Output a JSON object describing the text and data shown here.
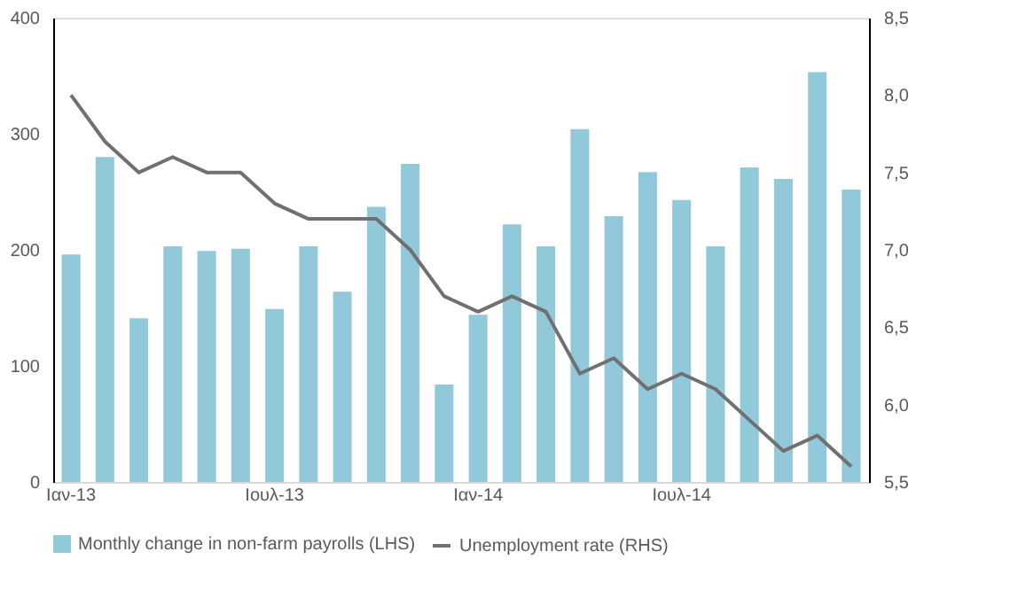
{
  "chart_data": {
    "type": "bar",
    "categories": [
      "Ιαν-13",
      null,
      null,
      null,
      null,
      null,
      "Ιουλ-13",
      null,
      null,
      null,
      null,
      null,
      "Ιαν-14",
      null,
      null,
      null,
      null,
      null,
      "Ιουλ-14",
      null,
      null,
      null,
      null,
      null
    ],
    "series": [
      {
        "name": "Monthly change in non-farm payrolls (LHS)",
        "color": "#92c9da",
        "values": [
          196,
          280,
          141,
          203,
          199,
          201,
          149,
          203,
          164,
          237,
          274,
          84,
          144,
          222,
          203,
          304,
          229,
          267,
          243,
          203,
          271,
          261,
          353,
          252
        ]
      },
      {
        "name": "Unemployment rate (RHS)",
        "type": "line",
        "axis": "y2",
        "color": "#707070",
        "values": [
          8.0,
          7.7,
          7.5,
          7.6,
          7.5,
          7.5,
          7.3,
          7.2,
          7.2,
          7.2,
          7.0,
          6.7,
          6.6,
          6.7,
          6.6,
          6.2,
          6.3,
          6.1,
          6.2,
          6.1,
          5.9,
          5.7,
          5.8,
          5.6
        ]
      }
    ],
    "ylim": [
      0,
      400
    ],
    "yticks": [
      0,
      100,
      200,
      300,
      400
    ],
    "y2lim": [
      5.5,
      8.5
    ],
    "y2ticks": [
      {
        "value": 5.5,
        "label": "5,5"
      },
      {
        "value": 6.0,
        "label": "6,0"
      },
      {
        "value": 6.5,
        "label": "6,5"
      },
      {
        "value": 7.0,
        "label": "7,0"
      },
      {
        "value": 7.5,
        "label": "7,5"
      },
      {
        "value": 8.0,
        "label": "8,0"
      },
      {
        "value": 8.5,
        "label": "8,5"
      }
    ],
    "grid": false,
    "legend": "bottom",
    "line_style": "solid",
    "marker": "none"
  }
}
